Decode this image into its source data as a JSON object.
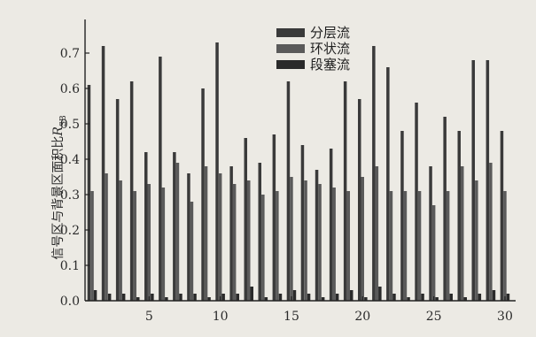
{
  "chart_data": {
    "type": "bar",
    "x": [
      1,
      2,
      3,
      4,
      5,
      6,
      7,
      8,
      9,
      10,
      11,
      12,
      13,
      14,
      15,
      16,
      17,
      18,
      19,
      20,
      21,
      22,
      23,
      24,
      25,
      26,
      27,
      28,
      29,
      30
    ],
    "series": [
      {
        "name": "分层流",
        "color": "#3a3a3a",
        "values": [
          0.61,
          0.72,
          0.57,
          0.62,
          0.42,
          0.69,
          0.42,
          0.36,
          0.6,
          0.73,
          0.38,
          0.46,
          0.39,
          0.47,
          0.62,
          0.44,
          0.37,
          0.43,
          0.62,
          0.57,
          0.72,
          0.66,
          0.48,
          0.56,
          0.38,
          0.52,
          0.48,
          0.68,
          0.68,
          0.48
        ]
      },
      {
        "name": "环状流",
        "color": "#5a5a5a",
        "values": [
          0.31,
          0.36,
          0.34,
          0.31,
          0.33,
          0.32,
          0.39,
          0.28,
          0.38,
          0.36,
          0.33,
          0.34,
          0.3,
          0.31,
          0.35,
          0.34,
          0.33,
          0.32,
          0.31,
          0.35,
          0.38,
          0.31,
          0.31,
          0.31,
          0.27,
          0.31,
          0.38,
          0.34,
          0.39,
          0.31
        ]
      },
      {
        "name": "段塞流",
        "color": "#2a2a2a",
        "values": [
          0.03,
          0.02,
          0.02,
          0.01,
          0.02,
          0.01,
          0.02,
          0.02,
          0.01,
          0.02,
          0.02,
          0.04,
          0.01,
          0.02,
          0.03,
          0.02,
          0.01,
          0.02,
          0.03,
          0.01,
          0.04,
          0.02,
          0.01,
          0.02,
          0.01,
          0.02,
          0.01,
          0.02,
          0.03,
          0.02
        ]
      }
    ],
    "xlabel": "",
    "ylabel": "信号区与背景区面积比",
    "ylabel_symbol": "R",
    "ylabel_subscript": "SB",
    "ylim": [
      0.0,
      0.78
    ],
    "xlim": [
      0.5,
      30.5
    ],
    "xticks": [
      5,
      10,
      15,
      20,
      25,
      30
    ],
    "yticks": [
      0.0,
      0.1,
      0.2,
      0.3,
      0.4,
      0.5,
      0.6,
      0.7
    ],
    "ytick_labels": [
      "0.0",
      "0.1",
      "0.2",
      "0.3",
      "0.4",
      "0.5",
      "0.6",
      "0.7"
    ],
    "xtick_labels": [
      "5",
      "10",
      "15",
      "20",
      "25",
      "30"
    ],
    "grid": false,
    "legend_position": "top-right"
  }
}
